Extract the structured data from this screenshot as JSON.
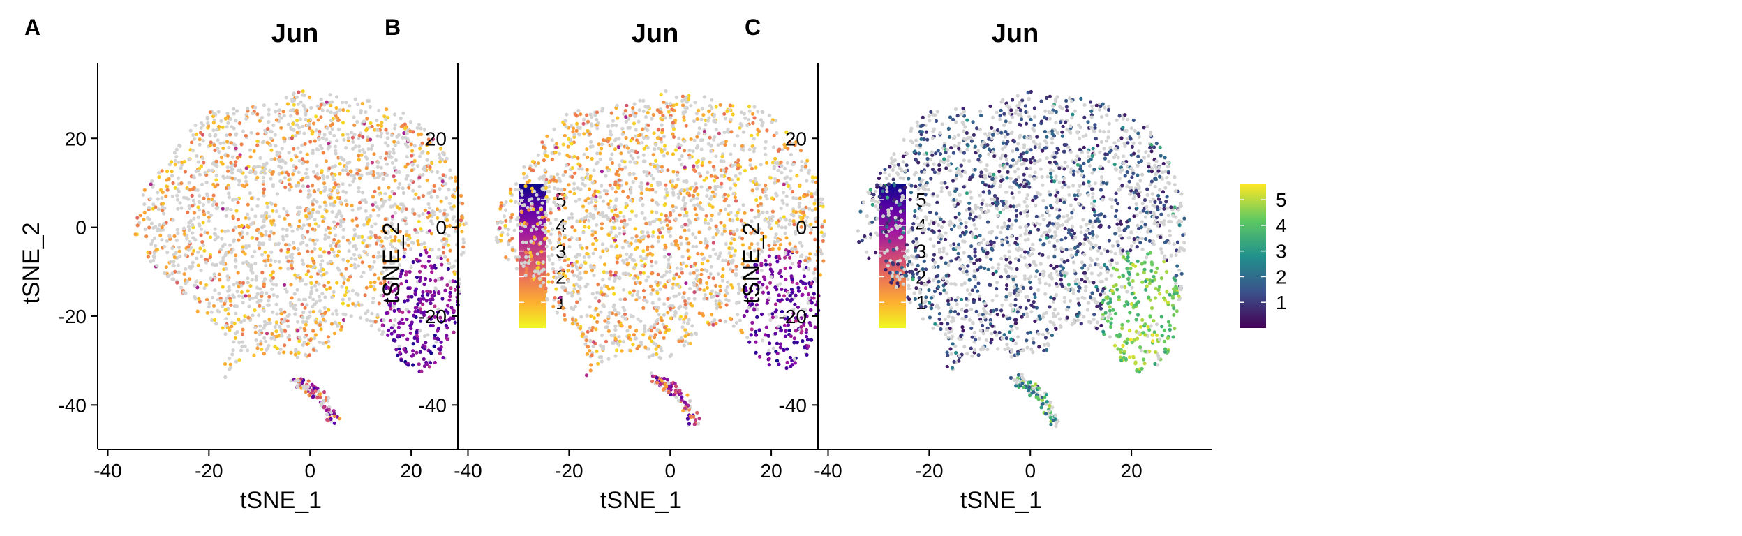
{
  "panels": [
    {
      "letter": "A",
      "title": "Jun",
      "xlabel": "tSNE_1",
      "ylabel": "tSNE_2",
      "colormap": "plasma_reversed",
      "colormap_stops": [
        "#f0f921",
        "#fdb42f",
        "#ed7953",
        "#cc4778",
        "#9c179e",
        "#5c01a6",
        "#0d0887"
      ],
      "background_color": "#d3d3d3",
      "legend_ticks": [
        "5",
        "4",
        "3",
        "2",
        "1"
      ],
      "seed": 11
    },
    {
      "letter": "B",
      "title": "Jun",
      "xlabel": "tSNE_1",
      "ylabel": "tSNE_2",
      "colormap": "plasma_reversed",
      "colormap_stops": [
        "#f0f921",
        "#fdb42f",
        "#ed7953",
        "#cc4778",
        "#9c179e",
        "#5c01a6",
        "#0d0887"
      ],
      "background_color": "#d3d3d3",
      "legend_ticks": [
        "5",
        "4",
        "3",
        "2",
        "1"
      ],
      "seed": 23
    },
    {
      "letter": "C",
      "title": "Jun",
      "xlabel": "tSNE_1",
      "ylabel": "tSNE_2",
      "colormap": "viridis",
      "colormap_stops": [
        "#440154",
        "#3b528b",
        "#21918c",
        "#5ec962",
        "#fde725"
      ],
      "background_color": "#d3d3d3",
      "legend_ticks": [
        "5",
        "4",
        "3",
        "2",
        "1"
      ],
      "seed": 37
    }
  ],
  "chart_data": [
    {
      "type": "scatter",
      "title": "Jun",
      "xlabel": "tSNE_1",
      "ylabel": "tSNE_2",
      "xticks": [
        -40,
        -20,
        0,
        20
      ],
      "yticks": [
        -40,
        -20,
        0,
        20
      ],
      "xlim": [
        -42,
        36
      ],
      "ylim": [
        -50,
        37
      ],
      "color_scale": {
        "min": 0,
        "max": 5.6,
        "colormap": "plasma_reversed",
        "ticks": [
          1,
          2,
          3,
          4,
          5
        ]
      },
      "legend_position": "right",
      "grid": false
    },
    {
      "type": "scatter",
      "title": "Jun",
      "xlabel": "tSNE_1",
      "ylabel": "tSNE_2",
      "xticks": [
        -40,
        -20,
        0,
        20
      ],
      "yticks": [
        -40,
        -20,
        0,
        20
      ],
      "xlim": [
        -42,
        36
      ],
      "ylim": [
        -50,
        37
      ],
      "color_scale": {
        "min": 0,
        "max": 5.6,
        "colormap": "plasma_reversed",
        "ticks": [
          1,
          2,
          3,
          4,
          5
        ]
      },
      "legend_position": "right",
      "grid": false
    },
    {
      "type": "scatter",
      "title": "Jun",
      "xlabel": "tSNE_1",
      "ylabel": "tSNE_2",
      "xticks": [
        -40,
        -20,
        0,
        20
      ],
      "yticks": [
        -40,
        -20,
        0,
        20
      ],
      "xlim": [
        -42,
        36
      ],
      "ylim": [
        -50,
        37
      ],
      "color_scale": {
        "min": 0,
        "max": 5.6,
        "colormap": "viridis",
        "ticks": [
          1,
          2,
          3,
          4,
          5
        ]
      },
      "legend_position": "right",
      "grid": false
    }
  ]
}
